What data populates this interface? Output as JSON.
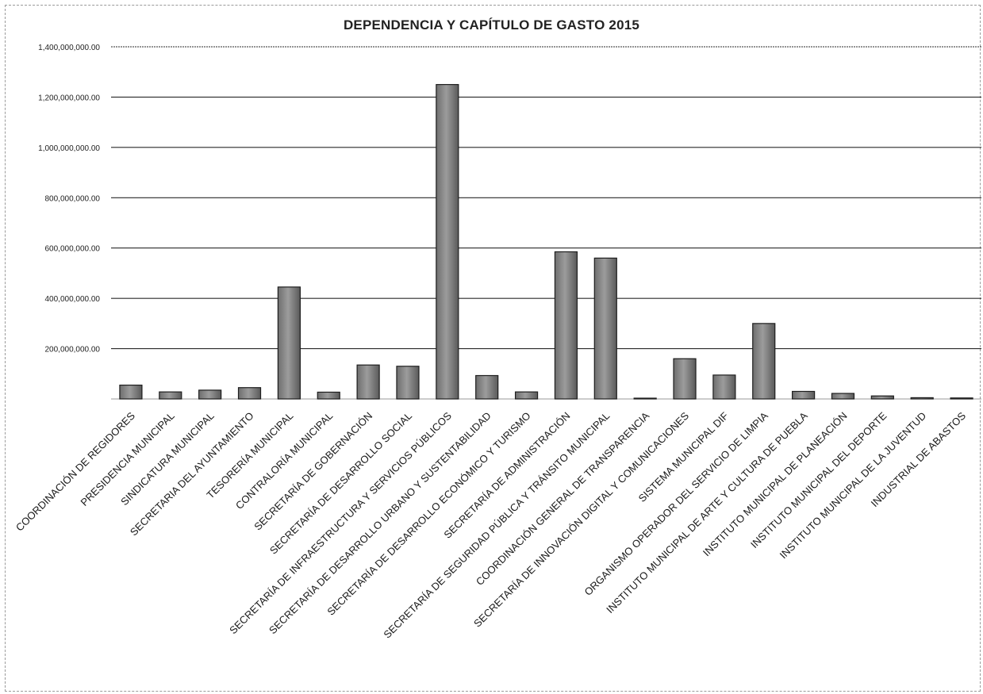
{
  "chart_data": {
    "type": "bar",
    "title": "DEPENDENCIA Y CAPÍTULO DE GASTO 2015",
    "xlabel": "",
    "ylabel": "",
    "ylim": [
      0,
      1400000000
    ],
    "yticks": [
      0,
      200000000,
      400000000,
      600000000,
      800000000,
      1000000000,
      1200000000,
      1400000000
    ],
    "ytick_labels": [
      "",
      "200,000,000.00",
      "400,000,000.00",
      "600,000,000.00",
      "800,000,000.00",
      "1,000,000,000.00",
      "1,200,000,000.00",
      "1,400,000,000.00"
    ],
    "grid": true,
    "legend": "none",
    "bar_color": "#8a8a8a",
    "categories": [
      "COORDINACIÓN DE REGIDORES",
      "PRESIDENCIA MUNICIPAL",
      "SINDICATURA MUNICIPAL",
      "SECRETARIA DEL AYUNTAMIENTO",
      "TESORERÍA MUNICIPAL",
      "CONTRALORÍA MUNICIPAL",
      "SECRETARÍA DE GOBERNACIÓN",
      "SECRETARÍA DE DESARROLLO SOCIAL",
      "SECRETARÍA DE INFRAESTRUCTURA Y SERVICIOS PÚBLICOS",
      "SECRETARÍA DE DESARROLLO URBANO Y SUSTENTABILIDAD",
      "SECRETARÍA DE DESARROLLO ECONÓMICO Y TURISMO",
      "SECRETARÍA DE ADMINISTRACIÓN",
      "SECRETARÍA DE SEGURIDAD PÚBLICA Y TRÁNSITO MUNICIPAL",
      "COORDINACIÓN GENERAL DE TRANSPARENCIA",
      "SECRETARÍA DE INNOVACIÓN DIGITAL Y COMUNICACIONES",
      "SISTEMA MUNICIPAL DIF",
      "ORGANISMO OPERADOR DEL SERVICIO DE LIMPIA",
      "INSTITUTO MUNICIPAL DE ARTE Y CULTURA DE PUEBLA",
      "INSTITUTO MUNICIPAL DE PLANEACIÓN",
      "INSTITUTO MUNICIPAL DEL DEPORTE",
      "INSTITUTO MUNICIPAL DE LA JUVENTUD",
      "INDUSTRIAL DE ABASTOS"
    ],
    "values": [
      55000000,
      28000000,
      35000000,
      45000000,
      445000000,
      27000000,
      135000000,
      130000000,
      1250000000,
      93000000,
      28000000,
      585000000,
      560000000,
      2000000,
      160000000,
      95000000,
      300000000,
      30000000,
      22000000,
      12000000,
      5000000,
      4000000
    ]
  }
}
